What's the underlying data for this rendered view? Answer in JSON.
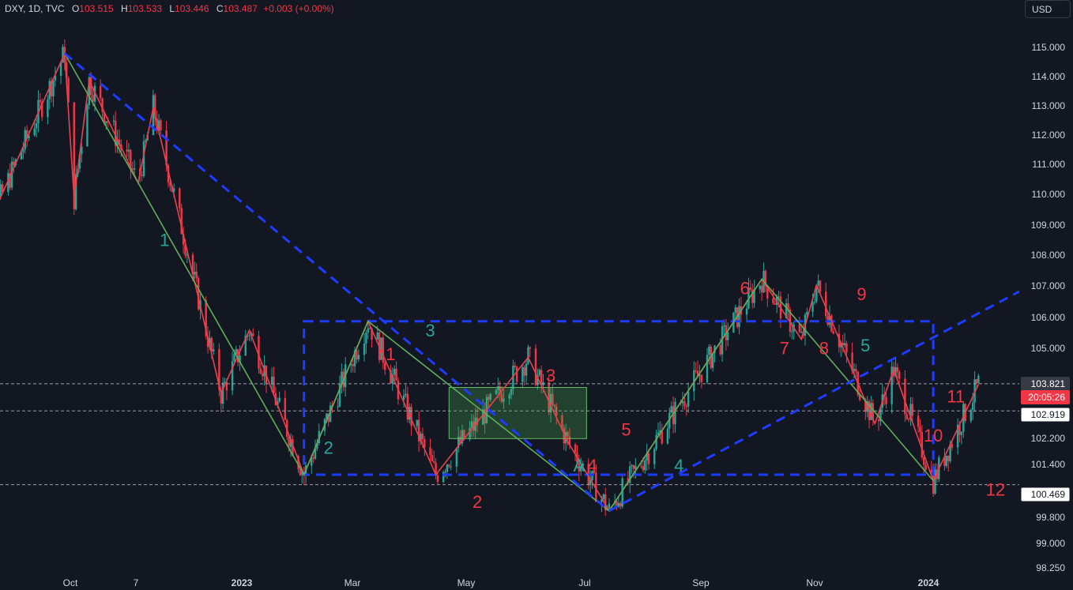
{
  "header": {
    "symbol": "DXY, 1D, TVC",
    "open_label": "O",
    "open": "103.515",
    "high_label": "H",
    "high": "103.533",
    "low_label": "L",
    "low": "103.446",
    "close_label": "C",
    "close": "103.487",
    "change": "+0.003 (+0.00%)"
  },
  "currency_button": "USD",
  "colors": {
    "background": "#131722",
    "up": "#26a69a",
    "down": "#f23645",
    "wave_green": "#5fae5a",
    "wave_red": "#e8424f",
    "dashed_blue": "#1e3cff",
    "label_green": "#26a69a",
    "label_red": "#f23645"
  },
  "chart_data": {
    "type": "candlestick",
    "y_axis_ticks": [
      "115.000",
      "114.000",
      "113.000",
      "112.000",
      "111.000",
      "110.000",
      "109.000",
      "108.000",
      "107.000",
      "106.000",
      "105.000",
      "102.200",
      "101.400",
      "99.800",
      "99.000",
      "98.250"
    ],
    "x_axis_ticks": [
      "Oct",
      "7",
      "2023",
      "Mar",
      "May",
      "Jul",
      "Sep",
      "Nov",
      "2024"
    ],
    "price_tags": [
      {
        "value": "103.821",
        "kind": "dark"
      },
      {
        "value": "20:05:26",
        "kind": "countdown"
      },
      {
        "value": "102.919",
        "kind": "light"
      },
      {
        "value": "100.469",
        "kind": "light"
      }
    ],
    "wave_labels": [
      {
        "text": "1",
        "color": "green",
        "date": "2022-11-20",
        "price": 108.4
      },
      {
        "text": "2",
        "color": "green",
        "date": "2023-02-15",
        "price": 101.5
      },
      {
        "text": "3",
        "color": "green",
        "date": "2023-04-10",
        "price": 105.4
      },
      {
        "text": "A",
        "color": "green",
        "date": "2023-06-28",
        "price": 100.9
      },
      {
        "text": "4",
        "color": "green",
        "date": "2023-08-20",
        "price": 100.9
      },
      {
        "text": "5",
        "color": "green",
        "date": "2023-11-27",
        "price": 104.9
      },
      {
        "text": "1",
        "color": "red",
        "date": "2023-03-20",
        "price": 104.6
      },
      {
        "text": "2",
        "color": "red",
        "date": "2023-05-05",
        "price": 99.7
      },
      {
        "text": "3",
        "color": "red",
        "date": "2023-06-13",
        "price": 103.9
      },
      {
        "text": "4",
        "color": "red",
        "date": "2023-07-05",
        "price": 100.9
      },
      {
        "text": "5",
        "color": "red",
        "date": "2023-07-23",
        "price": 102.1
      },
      {
        "text": "6",
        "color": "red",
        "date": "2023-09-24",
        "price": 106.8
      },
      {
        "text": "7",
        "color": "red",
        "date": "2023-10-15",
        "price": 104.8
      },
      {
        "text": "8",
        "color": "red",
        "date": "2023-11-05",
        "price": 104.8
      },
      {
        "text": "9",
        "color": "red",
        "date": "2023-11-25",
        "price": 106.6
      },
      {
        "text": "10",
        "color": "red",
        "date": "2024-01-02",
        "price": 101.9
      },
      {
        "text": "11",
        "color": "red",
        "date": "2024-01-14",
        "price": 103.2
      },
      {
        "text": "12",
        "color": "red",
        "date": "2024-02-04",
        "price": 100.1
      }
    ],
    "green_wave_path": [
      {
        "date": "2022-09-28",
        "price": 114.8
      },
      {
        "date": "2023-02-02",
        "price": 100.8
      },
      {
        "date": "2023-03-08",
        "price": 105.9
      },
      {
        "date": "2023-07-14",
        "price": 99.6
      },
      {
        "date": "2023-10-03",
        "price": 107.3
      },
      {
        "date": "2024-01-02",
        "price": 100.6
      }
    ],
    "red_wave_path": [
      {
        "date": "2022-08-10",
        "price": 107.9
      },
      {
        "date": "2022-09-28",
        "price": 114.8
      },
      {
        "date": "2022-10-03",
        "price": 110.0
      },
      {
        "date": "2022-10-11",
        "price": 113.9
      },
      {
        "date": "2022-11-06",
        "price": 110.5
      },
      {
        "date": "2022-11-14",
        "price": 113.0
      },
      {
        "date": "2022-12-20",
        "price": 103.5
      },
      {
        "date": "2023-01-04",
        "price": 105.6
      },
      {
        "date": "2023-02-02",
        "price": 100.8
      },
      {
        "date": "2023-03-08",
        "price": 105.9
      },
      {
        "date": "2023-04-13",
        "price": 100.8
      },
      {
        "date": "2023-06-01",
        "price": 104.7
      },
      {
        "date": "2023-06-22",
        "price": 101.9
      },
      {
        "date": "2023-07-14",
        "price": 99.6
      },
      {
        "date": "2023-10-03",
        "price": 107.3
      },
      {
        "date": "2023-10-24",
        "price": 105.3
      },
      {
        "date": "2023-11-01",
        "price": 107.1
      },
      {
        "date": "2023-12-02",
        "price": 102.5
      },
      {
        "date": "2023-12-12",
        "price": 104.3
      },
      {
        "date": "2024-01-02",
        "price": 100.6
      },
      {
        "date": "2024-01-26",
        "price": 103.8
      }
    ],
    "dashed_lines": [
      {
        "from": {
          "date": "2022-09-28",
          "price": 114.8
        },
        "to": {
          "date": "2023-07-14",
          "price": 99.6
        }
      },
      {
        "from": {
          "date": "2023-07-14",
          "price": 99.6
        },
        "to": {
          "date": "2024-02-20",
          "price": 107.0
        }
      }
    ],
    "dashed_box": {
      "date_from": "2023-02-02",
      "date_to": "2024-01-02",
      "price_top": 105.9,
      "price_bottom": 100.8
    },
    "zone": {
      "date_from": "2023-04-20",
      "date_to": "2023-07-02",
      "price_top": 103.7,
      "price_bottom": 102.0
    },
    "candles": []
  }
}
